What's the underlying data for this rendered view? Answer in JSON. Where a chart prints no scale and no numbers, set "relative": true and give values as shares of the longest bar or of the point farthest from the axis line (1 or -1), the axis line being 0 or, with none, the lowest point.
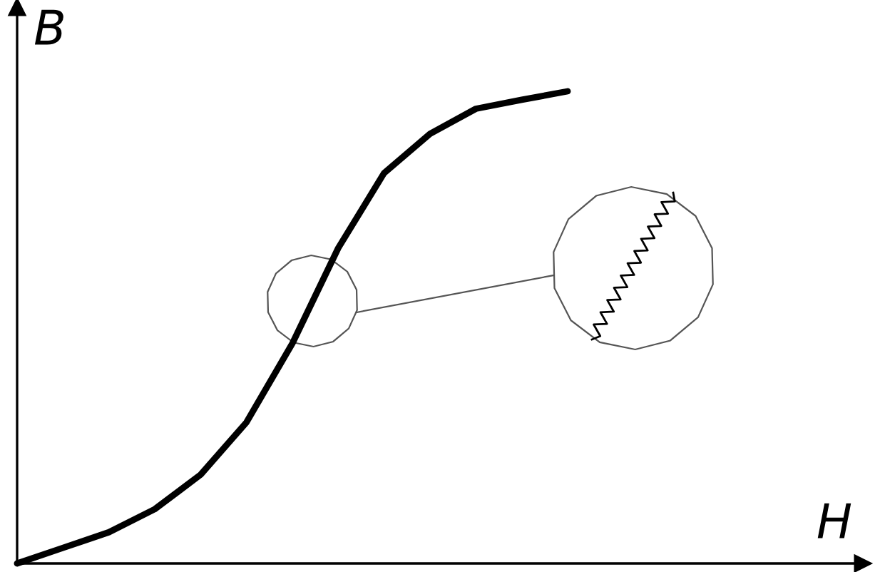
{
  "chart_data": {
    "type": "line",
    "relative": true,
    "xlabel": "H",
    "ylabel": "B",
    "categories": [
      null,
      null,
      null,
      null,
      null,
      null,
      null,
      null,
      null,
      null,
      null,
      null,
      null
    ],
    "series": [
      {
        "color": "#000000",
        "values": [
          0,
          0.033,
          0.066,
          0.115,
          0.188,
          0.299,
          0.466,
          0.668,
          0.827,
          0.91,
          0.963,
          0.982,
          1
        ]
      }
    ],
    "marker": "none",
    "line_style": "solid"
  }
}
